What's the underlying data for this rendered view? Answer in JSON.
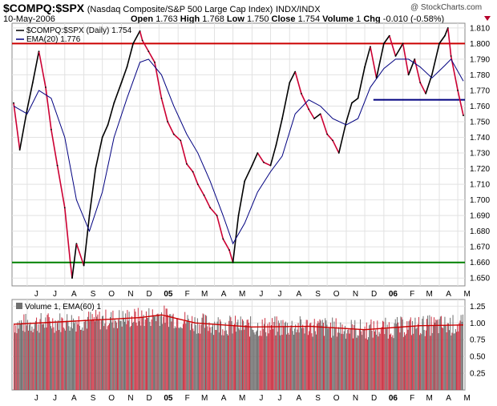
{
  "header": {
    "symbol": "$COMPQ:$SPX",
    "description": "(Nasdaq Composite/S&P 500 Large Cap Index)",
    "exchange": "INDX/INDX",
    "date": "10-May-2006",
    "open_label": "Open",
    "open": "1.763",
    "high_label": "High",
    "high": "1.768",
    "low_label": "Low",
    "low": "1.750",
    "close_label": "Close",
    "close": "1.754",
    "volume_label": "Volume",
    "volume": "1",
    "chg_label": "Chg",
    "chg": "-0.010 (-0.58%)",
    "brand": "@ StockCharts.com",
    "change_icon": "down-triangle-icon"
  },
  "colors": {
    "price": "#000000",
    "price_down": "#cc0033",
    "ema": "#000080",
    "resistance": "#cc0000",
    "support": "#008000",
    "midline": "#000080",
    "volume_bar": "#707070",
    "volume_bar_up": "#cc3344",
    "volume_ema": "#cc0000"
  },
  "chart_data": [
    {
      "type": "line",
      "title": "$COMPQ:$SPX (Daily) 1.754",
      "series": [
        {
          "name": "$COMPQ:$SPX (Daily) 1.754",
          "x": [
            "2004-05-10",
            "2004-05-20",
            "2004-06-01",
            "2004-06-10",
            "2004-06-20",
            "2004-07-01",
            "2004-07-10",
            "2004-07-20",
            "2004-08-01",
            "2004-08-10",
            "2004-08-13",
            "2004-08-20",
            "2004-09-01",
            "2004-09-10",
            "2004-09-20",
            "2004-10-01",
            "2004-10-10",
            "2004-10-20",
            "2004-11-01",
            "2004-11-10",
            "2004-11-20",
            "2004-12-01",
            "2004-12-05",
            "2004-12-15",
            "2004-12-25",
            "2005-01-05",
            "2005-01-15",
            "2005-01-25",
            "2005-02-05",
            "2005-02-15",
            "2005-02-25",
            "2005-03-05",
            "2005-03-15",
            "2005-03-25",
            "2005-04-05",
            "2005-04-15",
            "2005-04-25",
            "2005-05-01",
            "2005-05-10",
            "2005-05-20",
            "2005-06-01",
            "2005-06-10",
            "2005-06-20",
            "2005-07-01",
            "2005-07-10",
            "2005-07-20",
            "2005-08-01",
            "2005-08-10",
            "2005-08-20",
            "2005-09-01",
            "2005-09-10",
            "2005-09-20",
            "2005-10-01",
            "2005-10-10",
            "2005-10-20",
            "2005-11-01",
            "2005-11-10",
            "2005-11-20",
            "2005-12-01",
            "2005-12-10",
            "2005-12-20",
            "2006-01-01",
            "2006-01-10",
            "2006-01-20",
            "2006-02-01",
            "2006-02-10",
            "2006-02-20",
            "2006-03-01",
            "2006-03-10",
            "2006-03-20",
            "2006-04-01",
            "2006-04-10",
            "2006-04-15",
            "2006-04-20",
            "2006-05-01",
            "2006-05-10"
          ],
          "values": [
            1.762,
            1.732,
            1.758,
            1.775,
            1.795,
            1.772,
            1.745,
            1.722,
            1.695,
            1.66,
            1.65,
            1.672,
            1.658,
            1.69,
            1.72,
            1.74,
            1.748,
            1.762,
            1.775,
            1.785,
            1.8,
            1.808,
            1.802,
            1.795,
            1.788,
            1.765,
            1.75,
            1.742,
            1.738,
            1.723,
            1.718,
            1.71,
            1.703,
            1.695,
            1.69,
            1.675,
            1.668,
            1.66,
            1.69,
            1.712,
            1.722,
            1.73,
            1.724,
            1.722,
            1.735,
            1.752,
            1.775,
            1.782,
            1.768,
            1.758,
            1.752,
            1.755,
            1.742,
            1.738,
            1.73,
            1.75,
            1.762,
            1.765,
            1.785,
            1.798,
            1.778,
            1.8,
            1.805,
            1.792,
            1.8,
            1.78,
            1.79,
            1.775,
            1.768,
            1.78,
            1.8,
            1.805,
            1.81,
            1.792,
            1.77,
            1.754
          ]
        },
        {
          "name": "EMA(20) 1.776",
          "x": [
            "2004-05-10",
            "2004-06-01",
            "2004-06-20",
            "2004-07-10",
            "2004-08-01",
            "2004-08-20",
            "2004-09-10",
            "2004-10-01",
            "2004-10-20",
            "2004-11-10",
            "2004-12-01",
            "2004-12-15",
            "2005-01-05",
            "2005-01-25",
            "2005-02-15",
            "2005-03-05",
            "2005-03-25",
            "2005-04-15",
            "2005-05-01",
            "2005-05-20",
            "2005-06-10",
            "2005-07-01",
            "2005-07-20",
            "2005-08-10",
            "2005-09-01",
            "2005-09-20",
            "2005-10-10",
            "2005-11-01",
            "2005-11-20",
            "2005-12-10",
            "2006-01-01",
            "2006-01-20",
            "2006-02-10",
            "2006-03-01",
            "2006-03-20",
            "2006-04-10",
            "2006-04-20",
            "2006-05-10"
          ],
          "values": [
            1.76,
            1.755,
            1.77,
            1.765,
            1.74,
            1.7,
            1.68,
            1.705,
            1.74,
            1.765,
            1.788,
            1.79,
            1.78,
            1.76,
            1.742,
            1.73,
            1.712,
            1.69,
            1.672,
            1.685,
            1.705,
            1.718,
            1.728,
            1.755,
            1.764,
            1.76,
            1.752,
            1.748,
            1.752,
            1.772,
            1.784,
            1.79,
            1.79,
            1.785,
            1.778,
            1.786,
            1.79,
            1.776
          ]
        }
      ],
      "xlabel": "",
      "ylabel": "",
      "ylim": [
        1.645,
        1.813
      ],
      "x_ticks": [
        "J",
        "J",
        "A",
        "S",
        "O",
        "N",
        "D",
        "05",
        "F",
        "M",
        "A",
        "M",
        "J",
        "J",
        "A",
        "S",
        "O",
        "N",
        "D",
        "06",
        "F",
        "M",
        "A",
        "M"
      ],
      "y_ticks": [
        "1.810",
        "1.800",
        "1.790",
        "1.780",
        "1.770",
        "1.760",
        "1.750",
        "1.740",
        "1.730",
        "1.720",
        "1.710",
        "1.700",
        "1.690",
        "1.680",
        "1.670",
        "1.660",
        "1.650"
      ],
      "horizontal_lines": [
        {
          "value": 1.8,
          "color": "#cc0000"
        },
        {
          "value": 1.66,
          "color": "#008000"
        },
        {
          "value": 1.764,
          "color": "#000080",
          "x_start": "2005-12-15"
        }
      ],
      "grid": true,
      "legend_position": "top-left",
      "legend": [
        "$COMPQ:$SPX (Daily) 1.754",
        "EMA(20) 1.776"
      ]
    },
    {
      "type": "bar",
      "title": "Volume 1, EMA(60) 1",
      "values_summary": "daily volume ratio bars with EMA(60)",
      "ylim": [
        0,
        1.35
      ],
      "y_ticks": [
        "1.25",
        "1.00",
        "0.75",
        "0.50",
        "0.25"
      ],
      "x_ticks": [
        "J",
        "J",
        "A",
        "S",
        "O",
        "N",
        "D",
        "05",
        "F",
        "M",
        "A",
        "M",
        "J",
        "J",
        "A",
        "S",
        "O",
        "N",
        "D",
        "06",
        "F",
        "M",
        "A",
        "M"
      ],
      "ema": {
        "name": "EMA(60) 1",
        "x": [
          "2004-05-10",
          "2004-08-01",
          "2004-12-01",
          "2005-01-05",
          "2005-03-01",
          "2005-06-01",
          "2005-09-01",
          "2005-12-01",
          "2006-03-01",
          "2006-05-10"
        ],
        "values": [
          0.98,
          1.02,
          1.08,
          1.12,
          1.0,
          0.94,
          0.95,
          0.9,
          0.96,
          0.97
        ]
      },
      "grid": true,
      "legend": [
        "Volume 1, EMA(60) 1"
      ],
      "legend_position": "top-left"
    }
  ]
}
